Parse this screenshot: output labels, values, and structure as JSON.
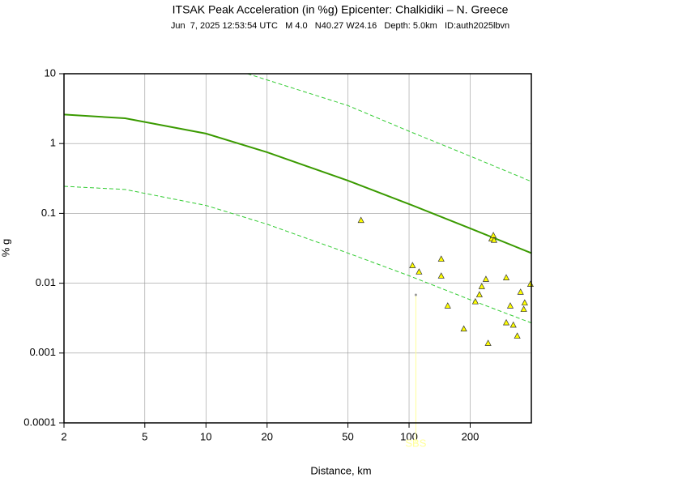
{
  "chart_data": {
    "type": "scatter",
    "title": "ITSAK Peak Acceleration (in %g) Epicenter: Chalkidiki – N. Greece",
    "subtitle": "Jun  7, 2025 12:53:54 UTC   M 4.0   N40.27 W24.16   Depth: 5.0km   ID:auth2025lbvn",
    "xlabel": "Distance, km",
    "ylabel": "% g",
    "xscale": "log",
    "yscale": "log",
    "grid": true,
    "xlim": [
      2,
      400
    ],
    "ylim": [
      0.0001,
      10
    ],
    "xticks": [
      2,
      5,
      10,
      20,
      50,
      100,
      200
    ],
    "yticks": [
      0.0001,
      0.001,
      0.01,
      0.1,
      1,
      10
    ],
    "lines": [
      {
        "style": "solid",
        "color": "#3a9a00",
        "x": [
          2,
          4,
          10,
          20,
          50,
          100,
          200,
          400
        ],
        "y": [
          2.6,
          2.3,
          1.39,
          0.75,
          0.295,
          0.136,
          0.061,
          0.027
        ]
      },
      {
        "style": "dashed",
        "color": "#33cc33",
        "x": [
          16,
          50,
          100,
          200,
          400
        ],
        "y": [
          10,
          3.5,
          1.5,
          0.66,
          0.286
        ]
      },
      {
        "style": "dashed",
        "color": "#33cc33",
        "x": [
          2,
          4,
          10,
          20,
          50,
          100,
          200,
          400
        ],
        "y": [
          0.244,
          0.22,
          0.13,
          0.07,
          0.027,
          0.0128,
          0.0058,
          0.0027
        ]
      }
    ],
    "series": [
      {
        "marker": "triangle",
        "color": "#ffff00",
        "x": [
          58,
          104,
          112,
          144,
          144,
          155,
          186,
          212,
          222,
          228,
          239,
          245,
          255,
          260,
          262,
          301,
          301,
          315,
          326,
          341,
          354,
          367,
          371,
          396
        ],
        "y": [
          0.079,
          0.0178,
          0.0144,
          0.022,
          0.0126,
          0.0047,
          0.0022,
          0.0054,
          0.0068,
          0.0089,
          0.0113,
          0.00137,
          0.043,
          0.048,
          0.041,
          0.0119,
          0.0027,
          0.0047,
          0.0025,
          0.00174,
          0.0074,
          0.0042,
          0.0052,
          0.0096
        ]
      },
      {
        "marker": "dot",
        "color": "#999999",
        "x": [
          108
        ],
        "y": [
          0.0068
        ]
      }
    ],
    "annotations": [
      {
        "text": "SBS",
        "x": 108,
        "y": 0.0068,
        "color": "#ffff99"
      }
    ]
  }
}
